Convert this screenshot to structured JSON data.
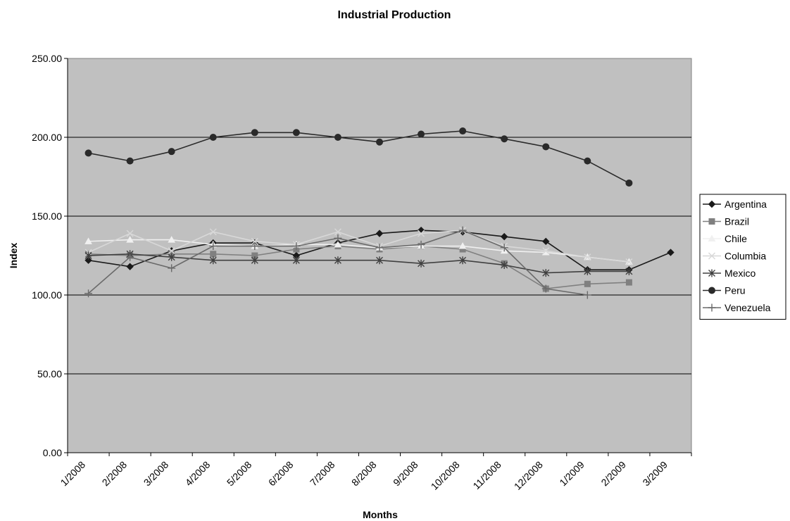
{
  "chart_data": {
    "type": "line",
    "title": "Industrial Production",
    "xlabel": "Months",
    "ylabel": "Index",
    "ylim": [
      0,
      250
    ],
    "y_ticks": [
      "0.00",
      "50.00",
      "100.00",
      "150.00",
      "200.00",
      "250.00"
    ],
    "categories": [
      "1/2008",
      "2/2008",
      "3/2008",
      "4/2008",
      "5/2008",
      "6/2008",
      "7/2008",
      "8/2008",
      "9/2008",
      "10/2008",
      "11/2008",
      "12/2008",
      "1/2009",
      "2/2009",
      "3/2009"
    ],
    "grid": "horizontal",
    "legend_position": "right",
    "plot_background": "#c0c0c0",
    "series": [
      {
        "name": "Argentina",
        "color": "#1a1a1a",
        "marker": "diamond",
        "values": [
          122,
          118,
          128,
          133,
          133,
          125,
          133,
          139,
          141,
          140,
          137,
          134,
          116,
          116,
          127
        ]
      },
      {
        "name": "Brazil",
        "color": "#808080",
        "marker": "square",
        "values": [
          126,
          125,
          126,
          126,
          125,
          129,
          131,
          129,
          131,
          129,
          120,
          104,
          107,
          108,
          null
        ]
      },
      {
        "name": "Chile",
        "color": "#f0f0f0",
        "marker": "triangle",
        "values": [
          134,
          135,
          135,
          132,
          131,
          132,
          132,
          130,
          131,
          131,
          128,
          127,
          124,
          121,
          null
        ]
      },
      {
        "name": "Columbia",
        "color": "#d8d8d8",
        "marker": "x",
        "values": [
          127,
          139,
          128,
          140,
          134,
          132,
          140,
          131,
          139,
          141,
          131,
          128,
          124,
          121,
          null
        ]
      },
      {
        "name": "Mexico",
        "color": "#404040",
        "marker": "star",
        "values": [
          125,
          126,
          124,
          122,
          122,
          122,
          122,
          122,
          120,
          122,
          119,
          114,
          115,
          115,
          null
        ]
      },
      {
        "name": "Peru",
        "color": "#2a2a2a",
        "marker": "circle",
        "values": [
          190,
          185,
          191,
          200,
          203,
          203,
          200,
          197,
          202,
          204,
          199,
          194,
          185,
          171,
          null
        ]
      },
      {
        "name": "Venezuela",
        "color": "#6a6a6a",
        "marker": "plus",
        "values": [
          101,
          124,
          117,
          131,
          131,
          131,
          136,
          130,
          132,
          141,
          130,
          104,
          100,
          null,
          null
        ]
      }
    ]
  }
}
